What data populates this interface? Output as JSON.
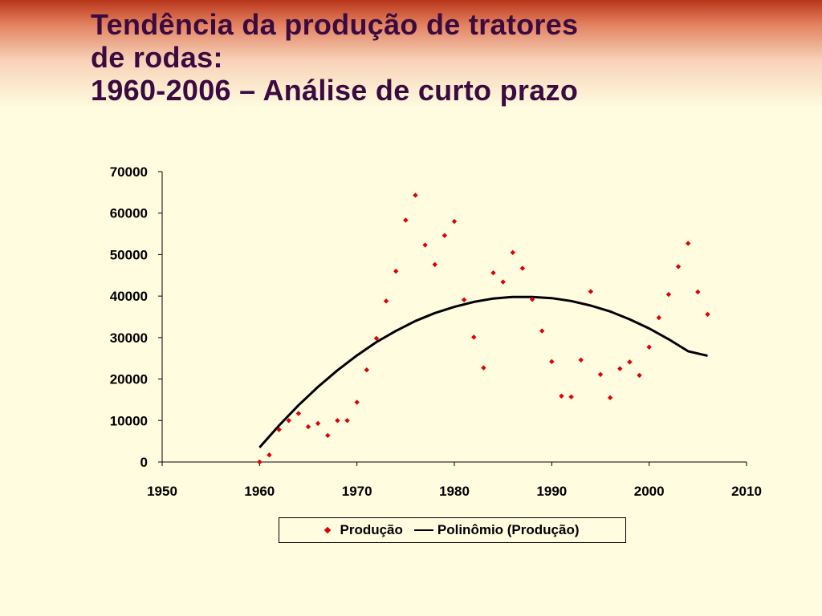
{
  "slide": {
    "title_line1": "Tendência da produção de tratores",
    "title_line2": "de rodas:",
    "title_line3": "1960-2006 – Análise de curto prazo"
  },
  "colors": {
    "title": "#3a0a40",
    "marker": "#e00000",
    "trendline": "#000000",
    "background": "#fffce0"
  },
  "chart_data": {
    "type": "scatter",
    "title": "",
    "xlabel": "",
    "ylabel": "",
    "xlim": [
      1950,
      2010
    ],
    "ylim": [
      0,
      70000
    ],
    "xticks": [
      1950,
      1960,
      1970,
      1980,
      1990,
      2000,
      2010
    ],
    "yticks": [
      0,
      10000,
      20000,
      30000,
      40000,
      50000,
      60000,
      70000
    ],
    "grid": false,
    "legend_position": "bottom",
    "series": [
      {
        "name": "Produção",
        "kind": "scatter",
        "marker": "diamond",
        "x": [
          1960,
          1961,
          1962,
          1963,
          1964,
          1965,
          1966,
          1967,
          1968,
          1969,
          1970,
          1971,
          1972,
          1973,
          1974,
          1975,
          1976,
          1977,
          1978,
          1979,
          1980,
          1981,
          1982,
          1983,
          1984,
          1985,
          1986,
          1987,
          1988,
          1989,
          1990,
          1991,
          1992,
          1993,
          1994,
          1995,
          1996,
          1997,
          1998,
          1999,
          2000,
          2001,
          2002,
          2003,
          2004,
          2005,
          2006
        ],
        "y": [
          0,
          1700,
          7800,
          10000,
          11700,
          8500,
          9300,
          6400,
          10000,
          10000,
          14400,
          22200,
          29800,
          38800,
          46000,
          58300,
          64300,
          52300,
          47600,
          54600,
          58000,
          39100,
          30100,
          22700,
          45600,
          43400,
          50500,
          46700,
          39200,
          31600,
          24200,
          15900,
          15700,
          24600,
          41100,
          21100,
          15500,
          22500,
          24100,
          20900,
          27700,
          34800,
          40400,
          47100,
          52700,
          41000,
          35600
        ]
      },
      {
        "name": "Polinômio (Produção)",
        "kind": "trendline",
        "polynomial_order": 2,
        "x": [
          1960,
          1962,
          1964,
          1966,
          1968,
          1970,
          1972,
          1974,
          1976,
          1978,
          1980,
          1982,
          1984,
          1986,
          1988,
          1990,
          1992,
          1994,
          1996,
          1998,
          2000,
          2002,
          2004,
          2006
        ],
        "y": [
          3500,
          8800,
          13700,
          18100,
          22100,
          25700,
          28900,
          31600,
          34000,
          35900,
          37400,
          38600,
          39400,
          39800,
          39800,
          39500,
          38800,
          37700,
          36300,
          34400,
          32200,
          29600,
          26700,
          25600
        ]
      }
    ],
    "legend": {
      "marker_label": "Produção",
      "line_label": "Polinômio (Produção)"
    }
  }
}
